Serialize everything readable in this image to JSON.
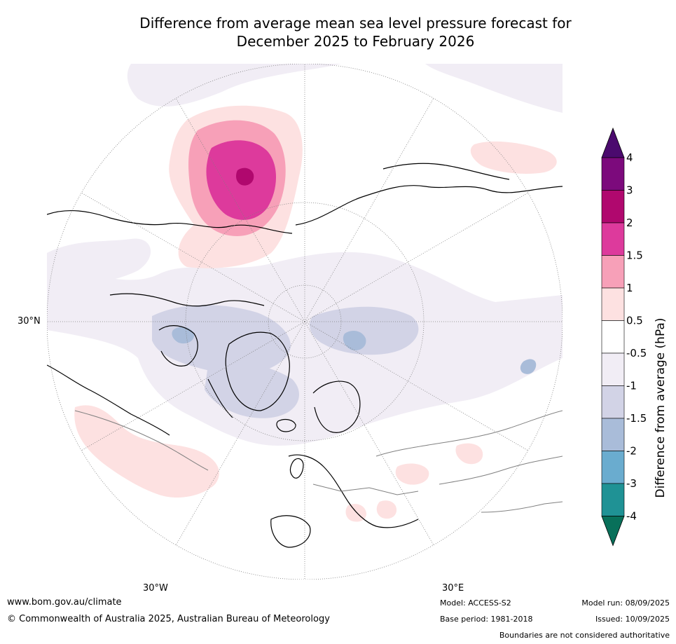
{
  "title": {
    "line1": "Difference from average mean sea level pressure forecast for",
    "line2": "December 2025 to February 2026"
  },
  "map": {
    "projection": "north-polar-stereographic",
    "graticule_labels": {
      "left": "30°N",
      "bottom_left": "30°W",
      "bottom_right": "30°E"
    }
  },
  "legend": {
    "label": "Difference from average (hPa)",
    "ticks": [
      "4",
      "3",
      "2",
      "1.5",
      "1",
      "0.5",
      "-0.5",
      "-1",
      "-1.5",
      "-2",
      "-3",
      "-4"
    ],
    "colors": {
      "gt4": "#4b0a6e",
      "3_4": "#7c0a7c",
      "2_3": "#b0086e",
      "1.5_2": "#dd3a9c",
      "1_1.5": "#f7a0b8",
      "0.5_1": "#fde1e1",
      "-0.5_0.5": "#ffffff",
      "-1_-0.5": "#f1edf5",
      "-1.5_-1": "#d2d3e6",
      "-2_-1.5": "#a9bcd9",
      "-3_-2": "#6aaccf",
      "-4_-3": "#1f9295",
      "lt-4": "#08705a"
    }
  },
  "footer": {
    "website": "www.bom.gov.au/climate",
    "copyright": "© Commonwealth of Australia 2025, Australian Bureau of Meteorology",
    "model": "Model: ACCESS-S2",
    "base_period": "Base period: 1981-2018",
    "model_run": "Model run: 08/09/2025",
    "issued": "Issued: 10/09/2025",
    "disclaimer": "Boundaries are not considered authoritative"
  }
}
